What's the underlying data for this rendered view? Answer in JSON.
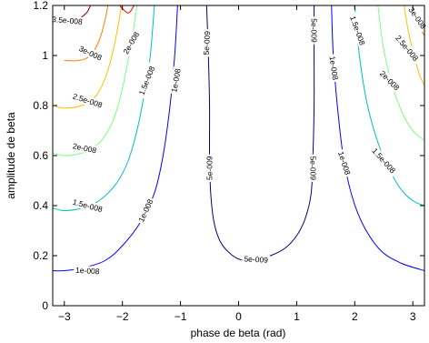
{
  "chart_data": {
    "type": "contour",
    "title": "",
    "xlabel": "phase de beta (rad)",
    "ylabel": "amplitude de beta",
    "xlim": [
      -3.2,
      3.2
    ],
    "ylim": [
      0,
      1.2
    ],
    "x_ticks": [
      -3,
      -2,
      -1,
      0,
      1,
      2,
      3
    ],
    "x_tick_labels": [
      "−3",
      "−2",
      "−1",
      "0",
      "1",
      "2",
      "3"
    ],
    "y_ticks": [
      0,
      0.2,
      0.4,
      0.6,
      0.8,
      1.0,
      1.2
    ],
    "y_tick_labels": [
      "0",
      "0.2",
      "0.4",
      "0.6",
      "0.8",
      "1",
      "1.2"
    ],
    "grid": false,
    "legend": "none",
    "levels": [
      {
        "label": "5e-009",
        "color": "#00007f",
        "curves": [
          [
            [
              -0.55,
              1.2
            ],
            [
              -0.52,
              1.0
            ],
            [
              -0.5,
              0.8
            ],
            [
              -0.5,
              0.6
            ],
            [
              -0.48,
              0.45
            ],
            [
              -0.42,
              0.33
            ],
            [
              -0.3,
              0.25
            ],
            [
              -0.1,
              0.2
            ],
            [
              0.1,
              0.18
            ],
            [
              0.3,
              0.185
            ],
            [
              0.55,
              0.2
            ],
            [
              0.8,
              0.23
            ],
            [
              1.0,
              0.28
            ],
            [
              1.15,
              0.35
            ],
            [
              1.25,
              0.45
            ],
            [
              1.28,
              0.6
            ],
            [
              1.3,
              0.8
            ],
            [
              1.3,
              1.0
            ],
            [
              1.3,
              1.2
            ]
          ]
        ],
        "labels": [
          {
            "x": -0.55,
            "y": 1.05,
            "angle": -87
          },
          {
            "x": -0.5,
            "y": 0.55,
            "angle": -90
          },
          {
            "x": 0.3,
            "y": 0.185,
            "angle": 3
          },
          {
            "x": 1.3,
            "y": 1.1,
            "angle": 90
          },
          {
            "x": 1.28,
            "y": 0.55,
            "angle": 90
          }
        ]
      },
      {
        "label": "1e-008",
        "color": "#0000ff",
        "curves": [
          [
            [
              -3.2,
              0.14
            ],
            [
              -3.0,
              0.14
            ],
            [
              -2.7,
              0.15
            ],
            [
              -2.3,
              0.18
            ],
            [
              -2.0,
              0.24
            ],
            [
              -1.7,
              0.33
            ],
            [
              -1.45,
              0.45
            ],
            [
              -1.3,
              0.6
            ],
            [
              -1.18,
              0.8
            ],
            [
              -1.1,
              1.0
            ],
            [
              -1.05,
              1.2
            ]
          ],
          [
            [
              1.6,
              1.2
            ],
            [
              1.63,
              1.0
            ],
            [
              1.7,
              0.8
            ],
            [
              1.8,
              0.6
            ],
            [
              1.95,
              0.44
            ],
            [
              2.15,
              0.32
            ],
            [
              2.45,
              0.22
            ],
            [
              2.8,
              0.17
            ],
            [
              3.2,
              0.14
            ]
          ]
        ],
        "labels": [
          {
            "x": -2.6,
            "y": 0.14,
            "angle": 3
          },
          {
            "x": -1.6,
            "y": 0.38,
            "angle": -65
          },
          {
            "x": -1.08,
            "y": 0.9,
            "angle": -80
          },
          {
            "x": 1.64,
            "y": 0.95,
            "angle": 82
          },
          {
            "x": 1.82,
            "y": 0.57,
            "angle": 72
          }
        ]
      },
      {
        "label": "1.5e-008",
        "color": "#00bfbf",
        "curves": [
          [
            [
              -3.2,
              0.39
            ],
            [
              -3.0,
              0.38
            ],
            [
              -2.7,
              0.39
            ],
            [
              -2.4,
              0.42
            ],
            [
              -2.1,
              0.49
            ],
            [
              -1.9,
              0.58
            ],
            [
              -1.75,
              0.7
            ],
            [
              -1.62,
              0.85
            ],
            [
              -1.52,
              1.0
            ],
            [
              -1.45,
              1.2
            ]
          ],
          [
            [
              2.0,
              1.2
            ],
            [
              2.08,
              1.0
            ],
            [
              2.22,
              0.8
            ],
            [
              2.45,
              0.62
            ],
            [
              2.75,
              0.48
            ],
            [
              3.0,
              0.42
            ],
            [
              3.2,
              0.4
            ]
          ]
        ],
        "labels": [
          {
            "x": -2.6,
            "y": 0.4,
            "angle": 15
          },
          {
            "x": -1.58,
            "y": 0.9,
            "angle": -68
          },
          {
            "x": 2.05,
            "y": 1.1,
            "angle": 70
          },
          {
            "x": 2.5,
            "y": 0.58,
            "angle": 48
          }
        ]
      },
      {
        "label": "2e-008",
        "color": "#7fff7f",
        "curves": [
          [
            [
              -3.2,
              0.61
            ],
            [
              -3.0,
              0.6
            ],
            [
              -2.7,
              0.61
            ],
            [
              -2.4,
              0.65
            ],
            [
              -2.2,
              0.72
            ],
            [
              -2.05,
              0.82
            ],
            [
              -1.92,
              0.96
            ],
            [
              -1.8,
              1.12
            ],
            [
              -1.75,
              1.2
            ]
          ],
          [
            [
              2.4,
              1.2
            ],
            [
              2.48,
              1.05
            ],
            [
              2.62,
              0.9
            ],
            [
              2.82,
              0.77
            ],
            [
              3.0,
              0.7
            ],
            [
              3.2,
              0.66
            ]
          ]
        ],
        "labels": [
          {
            "x": -2.65,
            "y": 0.63,
            "angle": 12
          },
          {
            "x": -1.85,
            "y": 1.05,
            "angle": -60
          },
          {
            "x": 2.6,
            "y": 0.9,
            "angle": 45
          }
        ]
      },
      {
        "label": "2.5e-008",
        "color": "#ffbf00",
        "curves": [
          [
            [
              -3.2,
              0.8
            ],
            [
              -3.0,
              0.79
            ],
            [
              -2.7,
              0.8
            ],
            [
              -2.45,
              0.84
            ],
            [
              -2.28,
              0.92
            ],
            [
              -2.15,
              1.03
            ],
            [
              -2.05,
              1.15
            ],
            [
              -2.02,
              1.2
            ]
          ],
          [
            [
              2.85,
              1.2
            ],
            [
              2.92,
              1.1
            ],
            [
              3.02,
              1.0
            ],
            [
              3.12,
              0.92
            ],
            [
              3.2,
              0.88
            ]
          ]
        ],
        "labels": [
          {
            "x": -2.6,
            "y": 0.82,
            "angle": 18
          },
          {
            "x": 2.9,
            "y": 1.03,
            "angle": 50
          }
        ]
      },
      {
        "label": "3e-008",
        "color": "#ff7f00",
        "curves": [
          [
            [
              -3.0,
              0.98
            ],
            [
              -2.75,
              0.98
            ],
            [
              -2.55,
              1.0
            ],
            [
              -2.4,
              1.06
            ],
            [
              -2.3,
              1.14
            ],
            [
              -2.25,
              1.2
            ]
          ],
          [
            [
              3.0,
              1.2
            ],
            [
              3.1,
              1.12
            ],
            [
              3.2,
              1.08
            ]
          ]
        ],
        "labels": [
          {
            "x": -2.55,
            "y": 1.01,
            "angle": 25
          },
          {
            "x": 3.08,
            "y": 1.15,
            "angle": 55
          }
        ]
      },
      {
        "label": "3.5e-008",
        "color": "#7f0000",
        "curves": [
          [
            [
              -3.2,
              1.14
            ],
            [
              -3.0,
              1.13
            ],
            [
              -2.8,
              1.14
            ],
            [
              -2.62,
              1.17
            ],
            [
              -2.55,
              1.2
            ]
          ]
        ],
        "labels": [
          {
            "x": -2.95,
            "y": 1.14,
            "angle": 5
          }
        ]
      },
      {
        "label": "",
        "color": "#ff0000",
        "curves": [
          [
            [
              -2.05,
              1.2
            ],
            [
              -1.9,
              1.17
            ],
            [
              -1.8,
              1.2
            ]
          ]
        ],
        "labels": []
      }
    ]
  }
}
